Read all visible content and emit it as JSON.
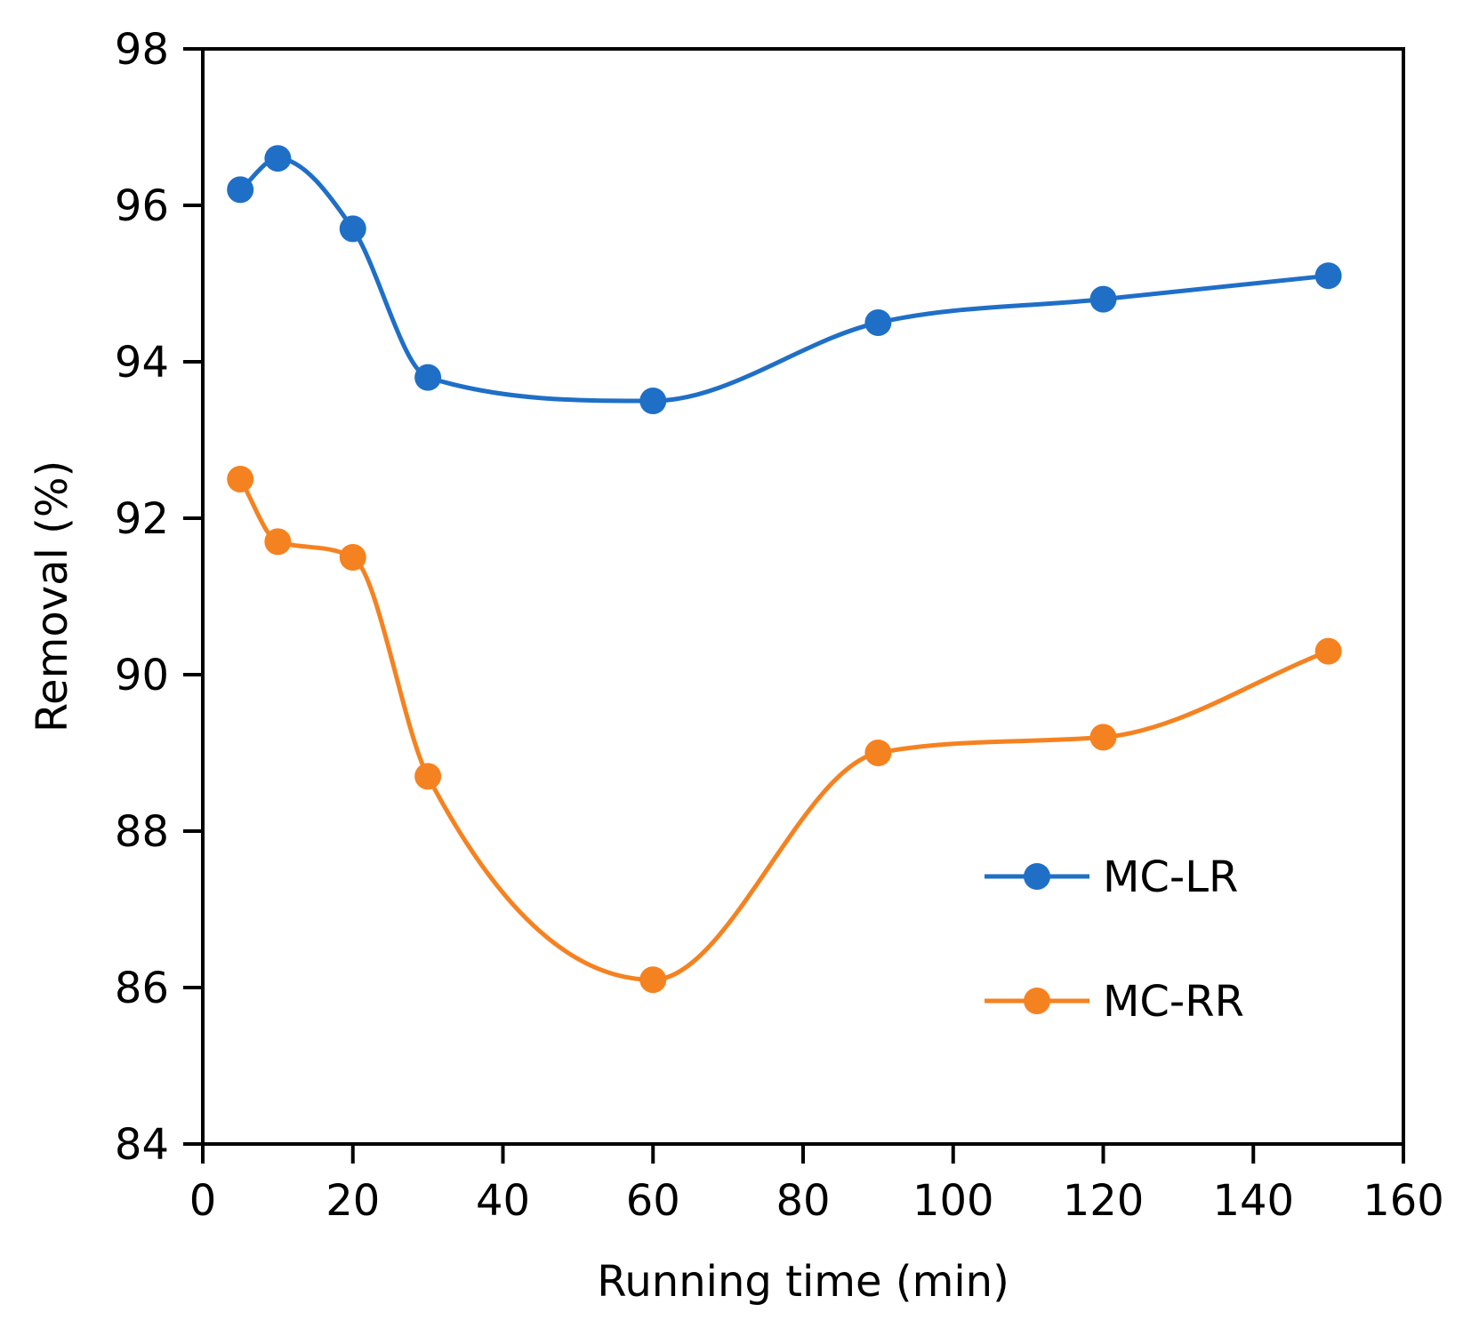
{
  "chart_data": {
    "type": "line",
    "title": "",
    "xlabel": "Running time (min)",
    "ylabel": "Removal (%)",
    "xlim": [
      0,
      160
    ],
    "ylim": [
      84,
      98
    ],
    "xticks": [
      0,
      20,
      40,
      60,
      80,
      100,
      120,
      140,
      160
    ],
    "yticks": [
      84,
      86,
      88,
      90,
      92,
      94,
      96,
      98
    ],
    "grid": false,
    "smooth": true,
    "legend_position": "lower-right",
    "x": [
      5,
      10,
      20,
      30,
      60,
      90,
      120,
      150
    ],
    "series": [
      {
        "name": "MC-LR",
        "color": "#1f6fc7",
        "values": [
          96.2,
          96.6,
          95.7,
          93.8,
          93.5,
          94.5,
          94.8,
          95.1
        ]
      },
      {
        "name": "MC-RR",
        "color": "#f58220",
        "values": [
          92.5,
          91.7,
          91.5,
          88.7,
          86.1,
          89.0,
          89.2,
          90.3
        ]
      }
    ]
  }
}
